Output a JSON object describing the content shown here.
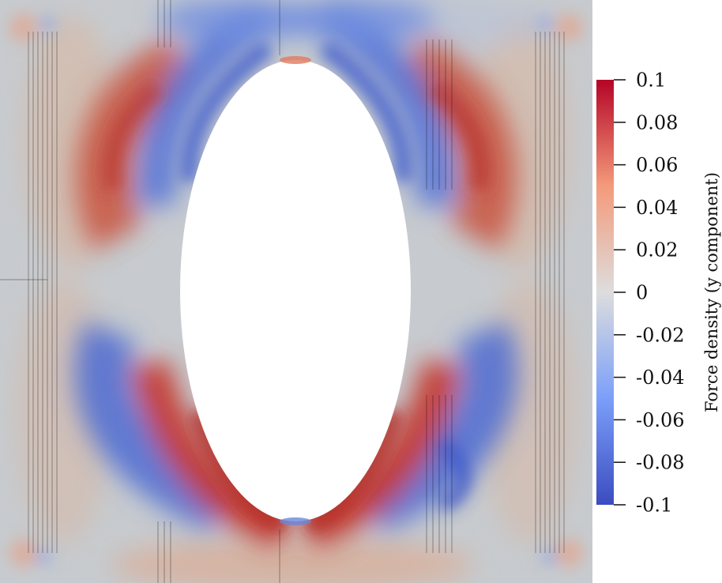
{
  "colorbar": {
    "title": "Force density (y component)",
    "range": [
      -0.1,
      0.1
    ],
    "ticks": [
      "0.1",
      "0.08",
      "0.06",
      "0.04",
      "0.02",
      "0",
      "-0.02",
      "-0.04",
      "-0.06",
      "-0.08",
      "-0.1"
    ],
    "colormap": "cool-to-warm",
    "colors": {
      "low": "#3b4cc0",
      "mid": "#dddddd",
      "high": "#b40426"
    }
  },
  "field": {
    "background": "#c7cbcf",
    "hole_color": "#ffffff"
  }
}
